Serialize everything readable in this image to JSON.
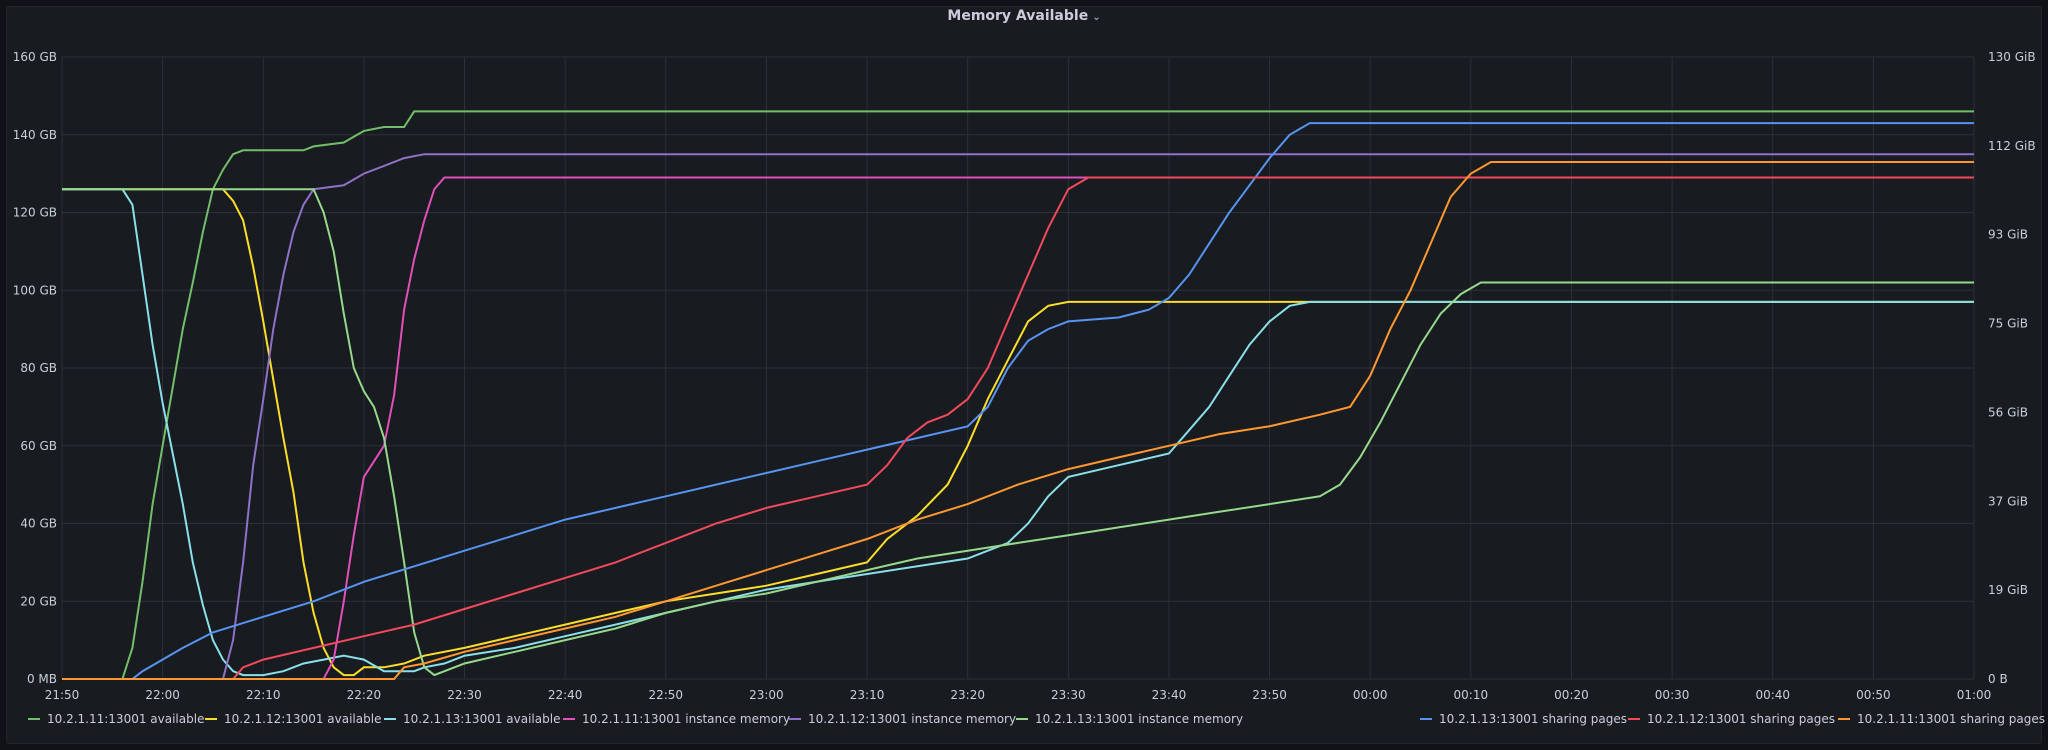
{
  "chart_data": {
    "type": "line",
    "title": "Memory Available",
    "x_ticks": [
      "21:50",
      "22:00",
      "22:10",
      "22:20",
      "22:30",
      "22:40",
      "22:50",
      "23:00",
      "23:10",
      "23:20",
      "23:30",
      "23:40",
      "23:50",
      "00:00",
      "00:10",
      "00:20",
      "00:30",
      "00:40",
      "00:50",
      "01:00"
    ],
    "y_left_ticks": [
      "0 MB",
      "20 GB",
      "40 GB",
      "60 GB",
      "80 GB",
      "100 GB",
      "120 GB",
      "140 GB",
      "160 GB"
    ],
    "y_right_ticks": [
      "0 B",
      "19 GiB",
      "37 GiB",
      "56 GiB",
      "75 GiB",
      "93 GiB",
      "112 GiB",
      "130 GiB"
    ],
    "ylim": [
      0,
      160
    ],
    "x_unit": "minutes since 21:50",
    "xlim": [
      0,
      190
    ],
    "series": [
      {
        "name": "10.2.1.11:13001 available",
        "color": "#73bf69",
        "legend_side": "left",
        "points": [
          [
            0,
            0
          ],
          [
            6,
            0
          ],
          [
            7,
            8
          ],
          [
            8,
            25
          ],
          [
            9,
            45
          ],
          [
            10,
            60
          ],
          [
            11,
            75
          ],
          [
            12,
            90
          ],
          [
            13,
            102
          ],
          [
            14,
            115
          ],
          [
            15,
            126
          ],
          [
            16,
            131
          ],
          [
            17,
            135
          ],
          [
            18,
            136
          ],
          [
            24,
            136
          ],
          [
            25,
            137
          ],
          [
            28,
            138
          ],
          [
            30,
            141
          ],
          [
            32,
            142
          ],
          [
            34,
            142
          ],
          [
            35,
            146
          ],
          [
            190,
            146
          ]
        ]
      },
      {
        "name": "10.2.1.12:13001 available",
        "color": "#fade2a",
        "legend_side": "left",
        "points": [
          [
            0,
            126
          ],
          [
            16,
            126
          ],
          [
            17,
            123
          ],
          [
            18,
            118
          ],
          [
            19,
            106
          ],
          [
            20,
            92
          ],
          [
            21,
            77
          ],
          [
            22,
            62
          ],
          [
            23,
            48
          ],
          [
            24,
            30
          ],
          [
            25,
            17
          ],
          [
            26,
            8
          ],
          [
            27,
            3
          ],
          [
            28,
            1
          ],
          [
            29,
            1
          ],
          [
            30,
            3
          ],
          [
            32,
            3
          ],
          [
            34,
            4
          ],
          [
            36,
            6
          ],
          [
            40,
            8
          ],
          [
            45,
            11
          ],
          [
            50,
            14
          ],
          [
            55,
            17
          ],
          [
            60,
            20
          ],
          [
            65,
            22
          ],
          [
            70,
            24
          ],
          [
            75,
            27
          ],
          [
            80,
            30
          ],
          [
            82,
            36
          ],
          [
            85,
            42
          ],
          [
            88,
            50
          ],
          [
            90,
            60
          ],
          [
            92,
            72
          ],
          [
            94,
            82
          ],
          [
            96,
            92
          ],
          [
            98,
            96
          ],
          [
            100,
            97
          ],
          [
            190,
            97
          ]
        ]
      },
      {
        "name": "10.2.1.13:13001 available",
        "color": "#8ae0e8",
        "legend_side": "left",
        "points": [
          [
            0,
            126
          ],
          [
            6,
            126
          ],
          [
            7,
            122
          ],
          [
            8,
            104
          ],
          [
            9,
            86
          ],
          [
            10,
            71
          ],
          [
            11,
            58
          ],
          [
            12,
            45
          ],
          [
            13,
            30
          ],
          [
            14,
            19
          ],
          [
            15,
            10
          ],
          [
            16,
            5
          ],
          [
            17,
            2
          ],
          [
            18,
            1
          ],
          [
            20,
            1
          ],
          [
            22,
            2
          ],
          [
            24,
            4
          ],
          [
            26,
            5
          ],
          [
            28,
            6
          ],
          [
            30,
            5
          ],
          [
            32,
            2
          ],
          [
            35,
            2
          ],
          [
            36,
            3
          ],
          [
            38,
            4
          ],
          [
            40,
            6
          ],
          [
            45,
            8
          ],
          [
            50,
            11
          ],
          [
            55,
            14
          ],
          [
            60,
            17
          ],
          [
            65,
            20
          ],
          [
            70,
            23
          ],
          [
            75,
            25
          ],
          [
            80,
            27
          ],
          [
            85,
            29
          ],
          [
            90,
            31
          ],
          [
            92,
            33
          ],
          [
            94,
            35
          ],
          [
            96,
            40
          ],
          [
            98,
            47
          ],
          [
            100,
            52
          ],
          [
            105,
            55
          ],
          [
            110,
            58
          ],
          [
            112,
            64
          ],
          [
            114,
            70
          ],
          [
            116,
            78
          ],
          [
            118,
            86
          ],
          [
            120,
            92
          ],
          [
            122,
            96
          ],
          [
            124,
            97
          ],
          [
            190,
            97
          ]
        ]
      },
      {
        "name": "10.2.1.11:13001 instance memory",
        "color": "#e14fb9",
        "legend_side": "left",
        "points": [
          [
            0,
            0
          ],
          [
            26,
            0
          ],
          [
            27,
            5
          ],
          [
            28,
            20
          ],
          [
            29,
            37
          ],
          [
            30,
            52
          ],
          [
            31,
            56
          ],
          [
            32,
            60
          ],
          [
            33,
            73
          ],
          [
            34,
            95
          ],
          [
            35,
            108
          ],
          [
            36,
            118
          ],
          [
            37,
            126
          ],
          [
            38,
            129
          ],
          [
            190,
            129
          ]
        ]
      },
      {
        "name": "10.2.1.12:13001 instance memory",
        "color": "#8f71c9",
        "legend_side": "left",
        "points": [
          [
            0,
            0
          ],
          [
            16,
            0
          ],
          [
            17,
            10
          ],
          [
            18,
            30
          ],
          [
            19,
            55
          ],
          [
            20,
            72
          ],
          [
            21,
            90
          ],
          [
            22,
            104
          ],
          [
            23,
            115
          ],
          [
            24,
            122
          ],
          [
            25,
            126
          ],
          [
            28,
            127
          ],
          [
            30,
            130
          ],
          [
            32,
            132
          ],
          [
            34,
            134
          ],
          [
            36,
            135
          ],
          [
            190,
            135
          ]
        ]
      },
      {
        "name": "10.2.1.13:13001 instance memory",
        "color": "#96d98d",
        "legend_side": "left",
        "points": [
          [
            0,
            126
          ],
          [
            25,
            126
          ],
          [
            26,
            120
          ],
          [
            27,
            110
          ],
          [
            28,
            94
          ],
          [
            29,
            80
          ],
          [
            30,
            74
          ],
          [
            31,
            70
          ],
          [
            32,
            62
          ],
          [
            33,
            47
          ],
          [
            34,
            30
          ],
          [
            35,
            12
          ],
          [
            36,
            3
          ],
          [
            37,
            1
          ],
          [
            40,
            4
          ],
          [
            45,
            7
          ],
          [
            50,
            10
          ],
          [
            55,
            13
          ],
          [
            60,
            17
          ],
          [
            65,
            20
          ],
          [
            70,
            22
          ],
          [
            75,
            25
          ],
          [
            80,
            28
          ],
          [
            85,
            31
          ],
          [
            90,
            33
          ],
          [
            95,
            35
          ],
          [
            100,
            37
          ],
          [
            105,
            39
          ],
          [
            110,
            41
          ],
          [
            115,
            43
          ],
          [
            120,
            45
          ],
          [
            125,
            47
          ],
          [
            127,
            50
          ],
          [
            129,
            57
          ],
          [
            131,
            66
          ],
          [
            133,
            76
          ],
          [
            135,
            86
          ],
          [
            137,
            94
          ],
          [
            139,
            99
          ],
          [
            141,
            102
          ],
          [
            190,
            102
          ]
        ]
      },
      {
        "name": "10.2.1.13:13001 sharing pages",
        "color": "#5794f2",
        "legend_side": "right",
        "points": [
          [
            0,
            0
          ],
          [
            7,
            0
          ],
          [
            8,
            2
          ],
          [
            10,
            5
          ],
          [
            12,
            8
          ],
          [
            15,
            12
          ],
          [
            20,
            16
          ],
          [
            25,
            20
          ],
          [
            30,
            25
          ],
          [
            35,
            29
          ],
          [
            40,
            33
          ],
          [
            45,
            37
          ],
          [
            50,
            41
          ],
          [
            55,
            44
          ],
          [
            60,
            47
          ],
          [
            65,
            50
          ],
          [
            70,
            53
          ],
          [
            75,
            56
          ],
          [
            80,
            59
          ],
          [
            85,
            62
          ],
          [
            90,
            65
          ],
          [
            92,
            70
          ],
          [
            94,
            80
          ],
          [
            96,
            87
          ],
          [
            98,
            90
          ],
          [
            100,
            92
          ],
          [
            105,
            93
          ],
          [
            108,
            95
          ],
          [
            110,
            98
          ],
          [
            112,
            104
          ],
          [
            114,
            112
          ],
          [
            116,
            120
          ],
          [
            118,
            127
          ],
          [
            120,
            134
          ],
          [
            122,
            140
          ],
          [
            124,
            143
          ],
          [
            190,
            143
          ]
        ]
      },
      {
        "name": "10.2.1.12:13001 sharing pages",
        "color": "#f2495c",
        "legend_side": "right",
        "points": [
          [
            0,
            0
          ],
          [
            17,
            0
          ],
          [
            18,
            3
          ],
          [
            20,
            5
          ],
          [
            25,
            8
          ],
          [
            30,
            11
          ],
          [
            35,
            14
          ],
          [
            40,
            18
          ],
          [
            45,
            22
          ],
          [
            50,
            26
          ],
          [
            55,
            30
          ],
          [
            60,
            35
          ],
          [
            65,
            40
          ],
          [
            70,
            44
          ],
          [
            75,
            47
          ],
          [
            80,
            50
          ],
          [
            82,
            55
          ],
          [
            84,
            62
          ],
          [
            86,
            66
          ],
          [
            88,
            68
          ],
          [
            90,
            72
          ],
          [
            92,
            80
          ],
          [
            94,
            92
          ],
          [
            96,
            104
          ],
          [
            98,
            116
          ],
          [
            100,
            126
          ],
          [
            102,
            129
          ],
          [
            190,
            129
          ]
        ]
      },
      {
        "name": "10.2.1.11:13001 sharing pages",
        "color": "#ff9830",
        "legend_side": "right",
        "points": [
          [
            0,
            0
          ],
          [
            33,
            0
          ],
          [
            34,
            3
          ],
          [
            36,
            4
          ],
          [
            40,
            7
          ],
          [
            45,
            10
          ],
          [
            50,
            13
          ],
          [
            55,
            16
          ],
          [
            60,
            20
          ],
          [
            65,
            24
          ],
          [
            70,
            28
          ],
          [
            75,
            32
          ],
          [
            80,
            36
          ],
          [
            85,
            41
          ],
          [
            90,
            45
          ],
          [
            95,
            50
          ],
          [
            100,
            54
          ],
          [
            105,
            57
          ],
          [
            110,
            60
          ],
          [
            115,
            63
          ],
          [
            120,
            65
          ],
          [
            125,
            68
          ],
          [
            128,
            70
          ],
          [
            130,
            78
          ],
          [
            132,
            90
          ],
          [
            134,
            100
          ],
          [
            136,
            112
          ],
          [
            138,
            124
          ],
          [
            140,
            130
          ],
          [
            142,
            133
          ],
          [
            190,
            133
          ]
        ]
      }
    ]
  }
}
